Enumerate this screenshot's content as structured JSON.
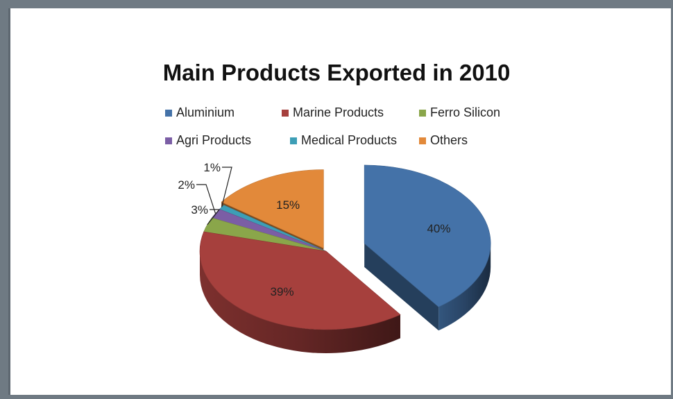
{
  "chart_data": {
    "type": "pie",
    "title": "Main Products Exported in 2010",
    "categories": [
      "Aluminium",
      "Marine Products",
      "Ferro Silicon",
      "Agri Products",
      "Medical Products",
      "Others"
    ],
    "values": [
      40,
      39,
      3,
      2,
      1,
      15
    ],
    "labels": [
      "40%",
      "39%",
      "3%",
      "2%",
      "1%",
      "15%"
    ],
    "colors": [
      "#4472a8",
      "#a6403d",
      "#8aa64a",
      "#7b5ea5",
      "#3d9eb6",
      "#e2893a"
    ],
    "legend_position": "top",
    "exploded": [
      "Aluminium"
    ],
    "style": "3d"
  }
}
